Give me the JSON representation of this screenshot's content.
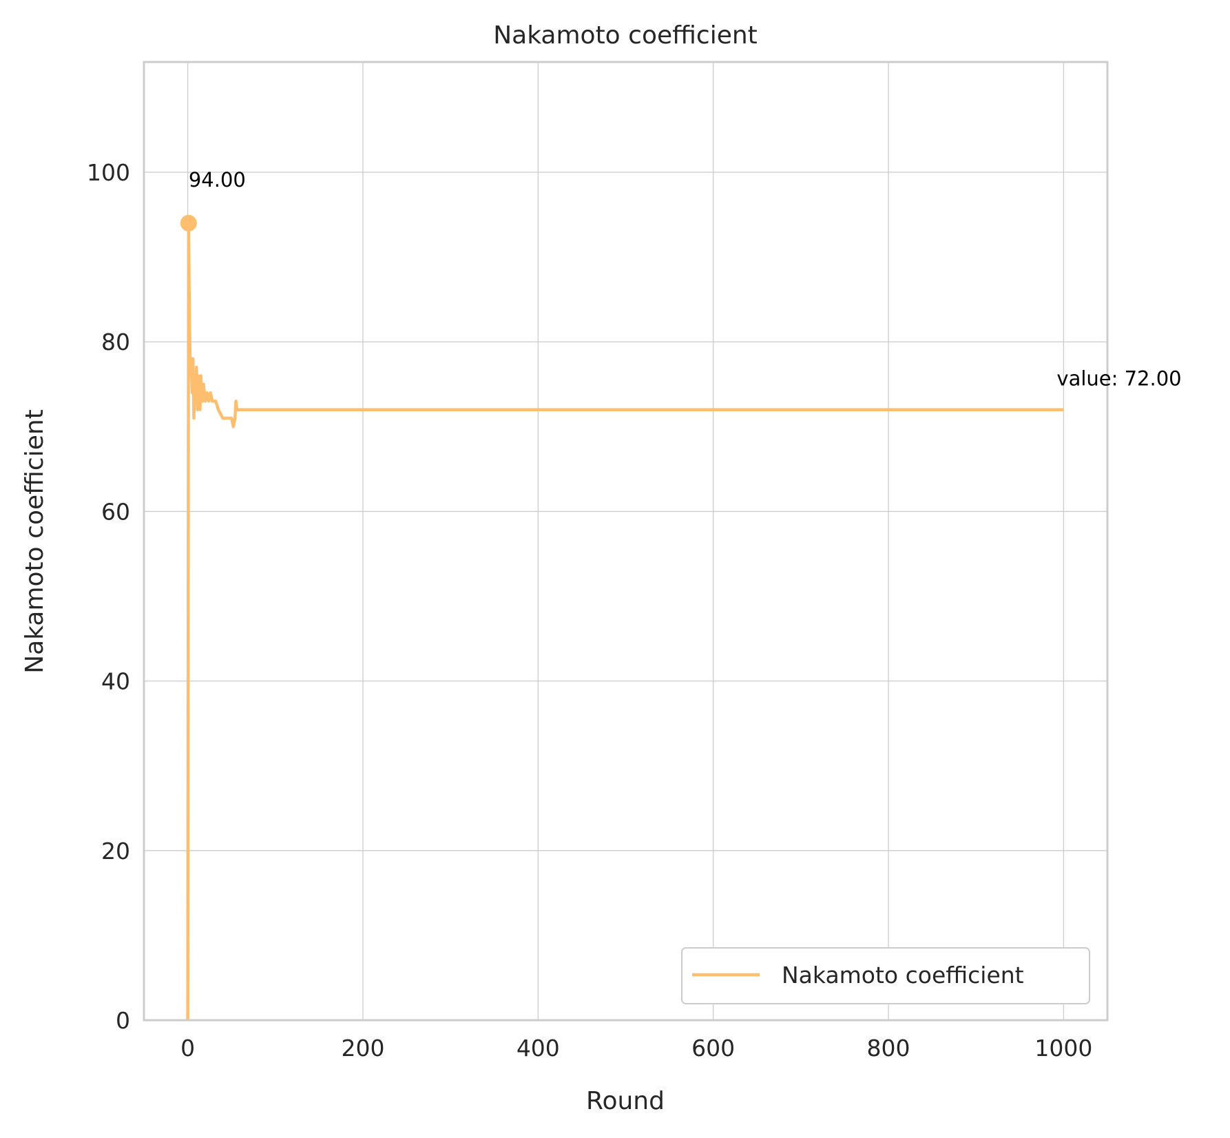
{
  "chart_data": {
    "type": "line",
    "title": "Nakamoto coefficient",
    "xlabel": "Round",
    "ylabel": "Nakamoto coefficient",
    "xlim": [
      -50,
      1050
    ],
    "ylim": [
      0,
      113
    ],
    "xticks": [
      0,
      200,
      400,
      600,
      800,
      1000
    ],
    "yticks": [
      0,
      20,
      40,
      60,
      80,
      100
    ],
    "grid": true,
    "legend_position": "lower-right",
    "series": [
      {
        "name": "Nakamoto coefficient",
        "color": "#fdbf6f",
        "points": [
          [
            0,
            0
          ],
          [
            1,
            94
          ],
          [
            2,
            82
          ],
          [
            3,
            76
          ],
          [
            4,
            78
          ],
          [
            5,
            74
          ],
          [
            6,
            78
          ],
          [
            7,
            71
          ],
          [
            8,
            76
          ],
          [
            9,
            73
          ],
          [
            10,
            77
          ],
          [
            11,
            72
          ],
          [
            12,
            76
          ],
          [
            13,
            74
          ],
          [
            14,
            72
          ],
          [
            15,
            76
          ],
          [
            16,
            74
          ],
          [
            17,
            73
          ],
          [
            18,
            75
          ],
          [
            20,
            73
          ],
          [
            22,
            74
          ],
          [
            24,
            73
          ],
          [
            26,
            74
          ],
          [
            28,
            73
          ],
          [
            32,
            73
          ],
          [
            35,
            72
          ],
          [
            40,
            71
          ],
          [
            45,
            71
          ],
          [
            50,
            71
          ],
          [
            52,
            70
          ],
          [
            54,
            71
          ],
          [
            55,
            73
          ],
          [
            56,
            72
          ],
          [
            60,
            72
          ],
          [
            100,
            72
          ],
          [
            200,
            72
          ],
          [
            400,
            72
          ],
          [
            600,
            72
          ],
          [
            800,
            72
          ],
          [
            1000,
            72
          ]
        ]
      }
    ],
    "annotations": [
      {
        "text": "94.00",
        "x": 1,
        "y": 94,
        "marker": true
      },
      {
        "text": "value: 72.00",
        "x": 1000,
        "y": 72
      }
    ]
  }
}
